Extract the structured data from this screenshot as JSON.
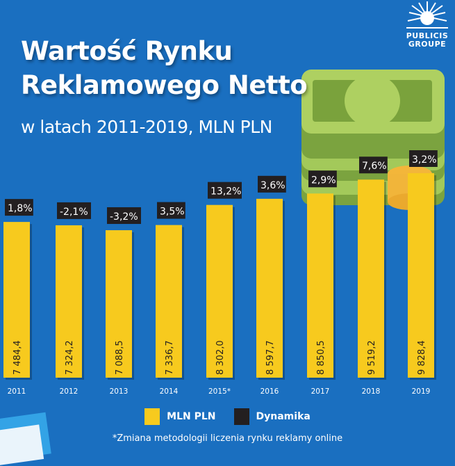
{
  "header": {
    "title_line1": "Wartość Rynku",
    "title_line2": "Reklamowego Netto",
    "subtitle": "w latach 2011-2019, MLN PLN"
  },
  "logo": {
    "line1": "PUBLICIS",
    "line2": "GROUPE"
  },
  "chart_data": {
    "type": "bar",
    "categories": [
      "2011",
      "2012",
      "2013",
      "2014",
      "2015*",
      "2016",
      "2017",
      "2018",
      "2019"
    ],
    "series": [
      {
        "name": "MLN PLN",
        "color": "#f7ca1e",
        "values": [
          7484.4,
          7324.2,
          7088.5,
          7336.7,
          8302.0,
          8597.7,
          8850.5,
          9519.2,
          9828.4
        ],
        "labels": [
          "7 484,4",
          "7 324,2",
          "7 088,5",
          "7 336,7",
          "8 302,0",
          "8 597,7",
          "8 850,5",
          "9 519,2",
          "9 828,4"
        ]
      },
      {
        "name": "Dynamika",
        "color": "#231f20",
        "values": [
          1.8,
          -2.1,
          -3.2,
          3.5,
          13.2,
          3.6,
          2.9,
          7.6,
          3.2
        ],
        "labels": [
          "1,8%",
          "-2,1%",
          "-3,2%",
          "3,5%",
          "13,2%",
          "3,6%",
          "2,9%",
          "7,6%",
          "3,2%"
        ]
      }
    ],
    "ylim": [
      0,
      10000
    ],
    "grid": false,
    "legend": "bottom",
    "footnote": "*Zmiana metodologii liczenia rynku reklamy online"
  },
  "colors": {
    "background": "#1a6fc0",
    "bar": "#f7ca1e",
    "label_box": "#231f20"
  }
}
